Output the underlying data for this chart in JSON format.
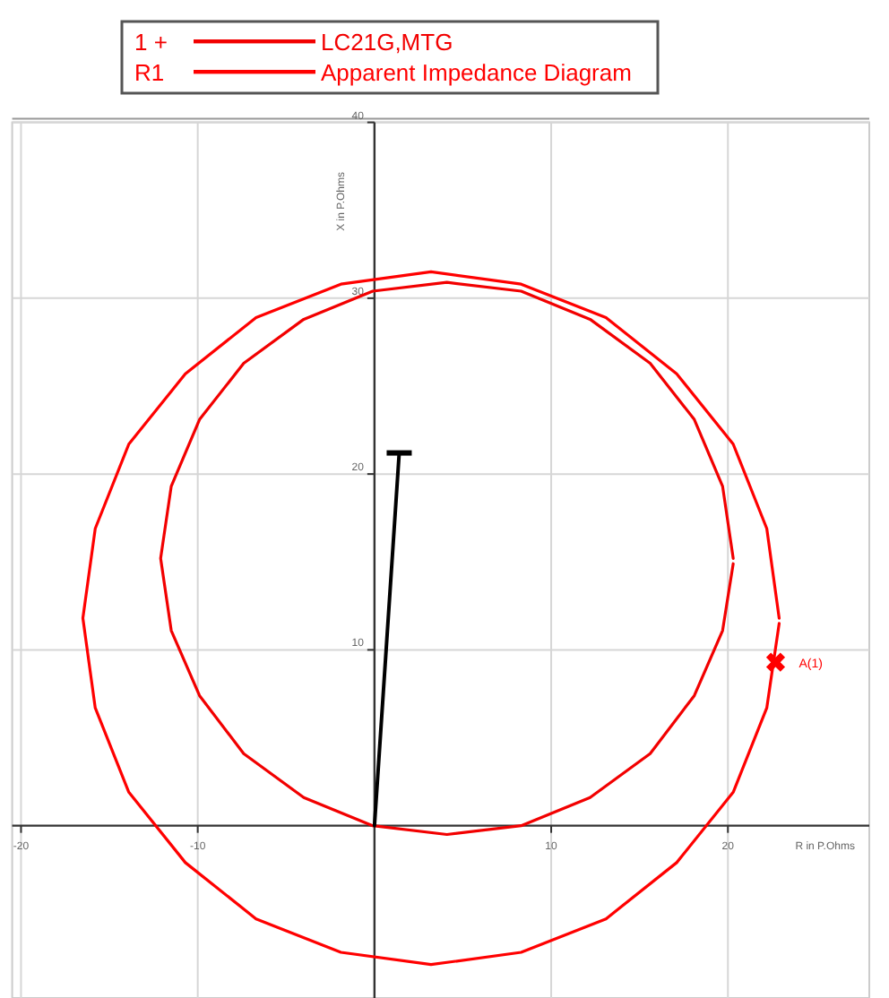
{
  "chart_data": {
    "type": "line",
    "xlabel": "R in P.Ohms",
    "ylabel": "X in P.Ohms",
    "xlim": [
      -20.5,
      28
    ],
    "ylim": [
      -9.8,
      40
    ],
    "xticks": [
      -20,
      -10,
      10,
      20
    ],
    "yticks": [
      10,
      20,
      30,
      40
    ],
    "grid": true,
    "legend": "top",
    "line_style": "solid",
    "marker": "none",
    "annotations": [
      "1 +",
      "R1",
      {
        "text": "A(1)",
        "x": 22.7,
        "y": 9.3
      }
    ],
    "series": [
      {
        "name": "LC21G,MTG",
        "color": "#f20000",
        "x": [
          20.3,
          19.7,
          18.1,
          15.6,
          12.2,
          8.3,
          4.1,
          -0.1,
          -4.0,
          -7.4,
          -9.9,
          -11.5,
          -12.1,
          -11.5,
          -9.9,
          -7.4,
          -4.0,
          -0.1,
          4.1,
          8.3,
          12.2,
          15.6,
          18.1,
          19.7,
          20.3
        ],
        "values": [
          15.2,
          19.3,
          23.1,
          26.3,
          28.8,
          30.4,
          30.9,
          30.4,
          28.8,
          26.3,
          23.1,
          19.3,
          15.2,
          11.1,
          7.4,
          4.1,
          1.6,
          0.0,
          -0.5,
          0.0,
          1.6,
          4.1,
          7.4,
          11.1,
          14.9
        ]
      },
      {
        "name": "Apparent Impedance Diagram",
        "color": "#ff0000",
        "x": [
          22.9,
          22.2,
          20.3,
          17.1,
          13.1,
          8.3,
          3.2,
          -1.9,
          -6.7,
          -10.7,
          -13.9,
          -15.8,
          -16.5,
          -15.8,
          -13.9,
          -10.7,
          -6.7,
          -1.9,
          3.2,
          8.3,
          13.1,
          17.1,
          20.3,
          22.2,
          22.9
        ],
        "values": [
          11.8,
          16.9,
          21.7,
          25.7,
          28.9,
          30.8,
          31.5,
          30.8,
          28.9,
          25.7,
          21.7,
          16.9,
          11.8,
          6.7,
          1.9,
          -2.1,
          -5.3,
          -7.2,
          -7.9,
          -7.2,
          -5.3,
          -2.1,
          1.9,
          6.7,
          11.5
        ]
      },
      {
        "color": "#000000",
        "x": [
          0,
          1.4
        ],
        "values": [
          0,
          21.2
        ]
      },
      {
        "type": "scatter",
        "marker": "cross",
        "color": "#ff0000",
        "x": [
          22.7
        ],
        "values": [
          9.3
        ]
      }
    ]
  }
}
